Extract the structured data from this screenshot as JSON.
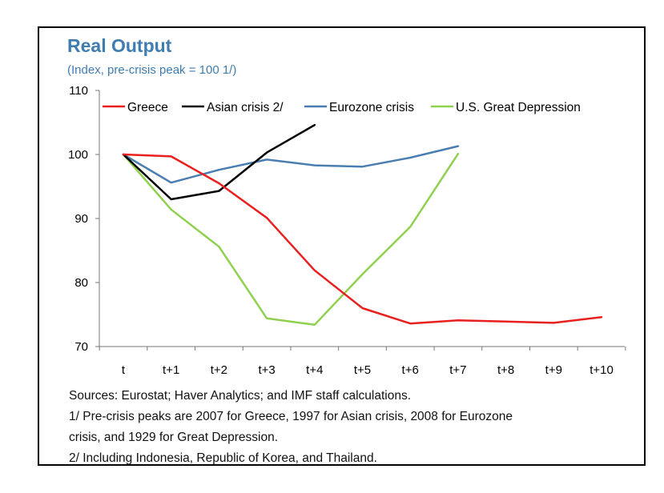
{
  "chart_data": {
    "type": "line",
    "title": "Real Output",
    "subtitle": "(Index, pre-crisis peak = 100 1/)",
    "xlabel": "",
    "ylabel": "",
    "categories": [
      "t",
      "t+1",
      "t+2",
      "t+3",
      "t+4",
      "t+5",
      "t+6",
      "t+7",
      "t+8",
      "t+9",
      "t+10"
    ],
    "ylim": [
      70,
      110
    ],
    "yticks": [
      70,
      80,
      90,
      100,
      110
    ],
    "grid": false,
    "legend_position": "top",
    "series": [
      {
        "name": "Greece",
        "color": "#E8201E",
        "values": [
          100,
          99.7,
          95.5,
          90.1,
          81.9,
          76.0,
          73.6,
          74.1,
          73.9,
          73.7,
          74.6
        ]
      },
      {
        "name": "Asian crisis 2/",
        "color": "#000000",
        "values": [
          100,
          93.0,
          94.3,
          100.3,
          104.6,
          null,
          null,
          null,
          null,
          null,
          null
        ]
      },
      {
        "name": "Eurozone crisis",
        "color": "#4A7EB0",
        "values": [
          100,
          95.6,
          97.6,
          99.2,
          98.3,
          98.1,
          99.5,
          101.3,
          null,
          null,
          null
        ]
      },
      {
        "name": "U.S. Great Depression",
        "color": "#8FD14F",
        "values": [
          100,
          91.4,
          85.6,
          74.4,
          73.4,
          81.3,
          88.7,
          100.1,
          null,
          null,
          null
        ]
      }
    ]
  },
  "notes": [
    "Sources: Eurostat; Haver Analytics; and IMF staff calculations.",
    "1/ Pre-crisis peaks are 2007 for Greece, 1997 for Asian crisis, 2008 for Eurozone",
    "crisis, and 1929 for Great Depression.",
    "2/ Including Indonesia, Republic of Korea, and Thailand."
  ]
}
